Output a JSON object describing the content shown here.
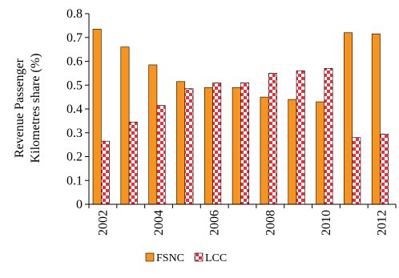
{
  "chart_data": {
    "type": "bar",
    "title": "",
    "xlabel": "",
    "ylabel_lines": [
      "Revenue Passenger",
      "Kilometres share (%)"
    ],
    "ylim": [
      0,
      0.8
    ],
    "yticks": [
      "0",
      "0.1",
      "0.2",
      "0.3",
      "0.4",
      "0.5",
      "0.6",
      "0.7",
      "0.8"
    ],
    "categories": [
      "2002",
      "2003",
      "2004",
      "2005",
      "2006",
      "2007",
      "2008",
      "2009",
      "2010",
      "2011",
      "2012"
    ],
    "xtick_labels": [
      "2002",
      "",
      "2004",
      "",
      "2006",
      "",
      "2008",
      "",
      "2010",
      "",
      "2012"
    ],
    "series": [
      {
        "name": "FSNC",
        "color": "#F7941D",
        "pattern": "solid",
        "values": [
          0.735,
          0.66,
          0.585,
          0.515,
          0.49,
          0.49,
          0.45,
          0.44,
          0.43,
          0.72,
          0.715
        ]
      },
      {
        "name": "LCC",
        "color": "#E8313A",
        "pattern": "red-checker-on-white",
        "values": [
          0.265,
          0.345,
          0.415,
          0.485,
          0.51,
          0.51,
          0.55,
          0.56,
          0.57,
          0.28,
          0.295
        ]
      }
    ],
    "grid": false,
    "legend_position": "bottom-center"
  }
}
